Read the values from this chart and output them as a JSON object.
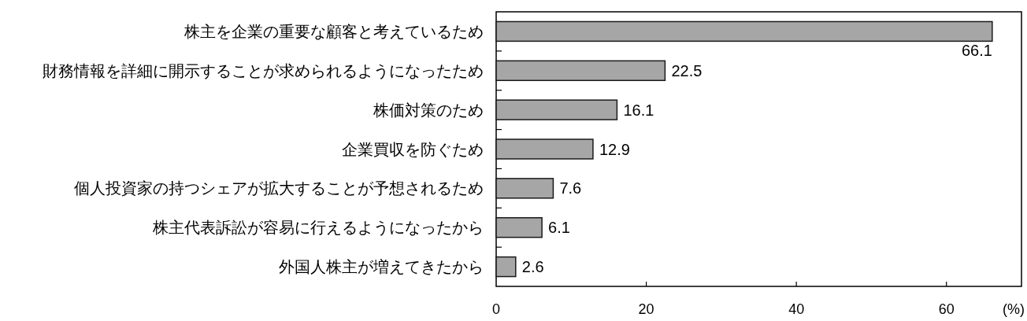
{
  "chart_data": {
    "type": "bar",
    "orientation": "horizontal",
    "categories": [
      "株主を企業の重要な顧客と考えているため",
      "財務情報を詳細に開示することが求められるようになったため",
      "株価対策のため",
      "企業買収を防ぐため",
      "個人投資家の持つシェアが拡大することが予想されるため",
      "株主代表訴訟が容易に行えるようになったから",
      "外国人株主が増えてきたから"
    ],
    "values": [
      66.1,
      22.5,
      16.1,
      12.9,
      7.6,
      6.1,
      2.6
    ],
    "color": "#a6a6a6",
    "xlim": [
      0,
      70
    ],
    "xticks": [
      0,
      20,
      40,
      60
    ],
    "xlabel": "(%)",
    "data_labels": true
  }
}
